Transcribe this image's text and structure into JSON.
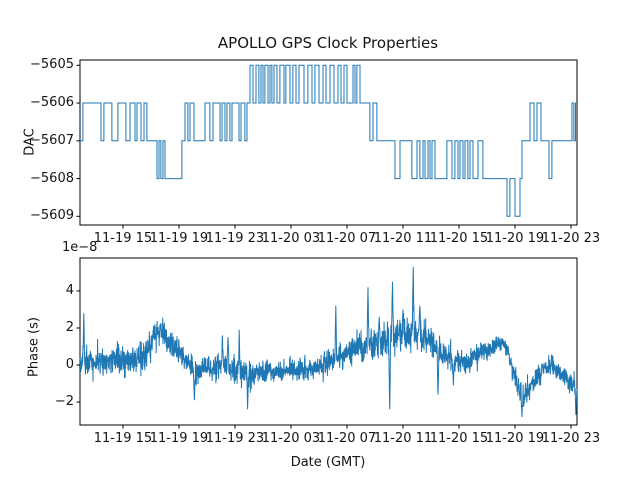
{
  "figure": {
    "background": "#ffffff",
    "line_color": "#1f77b4",
    "axis_color": "#000000"
  },
  "chart_data": [
    {
      "type": "line",
      "name": "dac-subplot",
      "title": "APOLLO GPS Clock Properties",
      "ylabel": "DAC",
      "drawstyle": "steps-post",
      "x_axis": "hours since 11-19 00:00 GMT",
      "xlim": [
        11.93,
        47.43
      ],
      "ylim": [
        -5609.23,
        -5604.86
      ],
      "grid": false,
      "xticks": [
        15,
        19,
        23,
        27,
        31,
        35,
        39,
        43,
        47
      ],
      "xtick_labels": [
        "11-19 15",
        "11-19 19",
        "11-19 23",
        "11-20 03",
        "11-20 07",
        "11-20 11",
        "11-20 15",
        "11-20 19",
        "11-20 23"
      ],
      "yticks": [
        -5605,
        -5606,
        -5607,
        -5608,
        -5609
      ],
      "ytick_labels": [
        "−5605",
        "−5606",
        "−5607",
        "−5608",
        "−5609"
      ],
      "points": [
        [
          11.93,
          -5607
        ],
        [
          12.14,
          -5606
        ],
        [
          13.43,
          -5607
        ],
        [
          13.64,
          -5606
        ],
        [
          14.21,
          -5607
        ],
        [
          14.64,
          -5606
        ],
        [
          15.21,
          -5607
        ],
        [
          15.5,
          -5606
        ],
        [
          15.86,
          -5607
        ],
        [
          16.0,
          -5606
        ],
        [
          16.29,
          -5607
        ],
        [
          16.5,
          -5606
        ],
        [
          16.71,
          -5607
        ],
        [
          17.43,
          -5608
        ],
        [
          17.57,
          -5607
        ],
        [
          17.71,
          -5608
        ],
        [
          17.86,
          -5607
        ],
        [
          18.0,
          -5608
        ],
        [
          19.21,
          -5607
        ],
        [
          19.43,
          -5606
        ],
        [
          19.64,
          -5607
        ],
        [
          19.79,
          -5606
        ],
        [
          20.07,
          -5607
        ],
        [
          20.86,
          -5606
        ],
        [
          21.21,
          -5607
        ],
        [
          21.43,
          -5606
        ],
        [
          21.93,
          -5607
        ],
        [
          22.07,
          -5606
        ],
        [
          22.29,
          -5607
        ],
        [
          22.43,
          -5606
        ],
        [
          22.64,
          -5607
        ],
        [
          22.79,
          -5606
        ],
        [
          23.29,
          -5607
        ],
        [
          23.43,
          -5606
        ],
        [
          23.71,
          -5607
        ],
        [
          23.86,
          -5606
        ],
        [
          24.07,
          -5605
        ],
        [
          24.29,
          -5606
        ],
        [
          24.5,
          -5605
        ],
        [
          24.71,
          -5606
        ],
        [
          24.86,
          -5605
        ],
        [
          25.0,
          -5606
        ],
        [
          25.14,
          -5605
        ],
        [
          25.36,
          -5606
        ],
        [
          25.5,
          -5605
        ],
        [
          25.64,
          -5606
        ],
        [
          25.79,
          -5605
        ],
        [
          26.0,
          -5606
        ],
        [
          26.21,
          -5605
        ],
        [
          26.5,
          -5606
        ],
        [
          26.64,
          -5605
        ],
        [
          26.93,
          -5606
        ],
        [
          27.14,
          -5605
        ],
        [
          27.36,
          -5606
        ],
        [
          27.57,
          -5605
        ],
        [
          27.93,
          -5606
        ],
        [
          28.21,
          -5605
        ],
        [
          28.5,
          -5606
        ],
        [
          28.71,
          -5605
        ],
        [
          29.0,
          -5606
        ],
        [
          29.29,
          -5605
        ],
        [
          29.5,
          -5606
        ],
        [
          29.79,
          -5605
        ],
        [
          30.07,
          -5606
        ],
        [
          30.36,
          -5605
        ],
        [
          30.57,
          -5606
        ],
        [
          30.79,
          -5605
        ],
        [
          31.0,
          -5606
        ],
        [
          31.43,
          -5605
        ],
        [
          31.57,
          -5606
        ],
        [
          31.71,
          -5605
        ],
        [
          31.93,
          -5606
        ],
        [
          32.64,
          -5607
        ],
        [
          32.86,
          -5606
        ],
        [
          33.14,
          -5607
        ],
        [
          34.43,
          -5608
        ],
        [
          34.79,
          -5607
        ],
        [
          35.64,
          -5608
        ],
        [
          36.0,
          -5607
        ],
        [
          36.21,
          -5608
        ],
        [
          36.43,
          -5607
        ],
        [
          36.57,
          -5608
        ],
        [
          36.79,
          -5607
        ],
        [
          36.93,
          -5608
        ],
        [
          37.07,
          -5607
        ],
        [
          37.29,
          -5608
        ],
        [
          38.14,
          -5607
        ],
        [
          38.5,
          -5608
        ],
        [
          38.71,
          -5607
        ],
        [
          38.93,
          -5608
        ],
        [
          39.07,
          -5607
        ],
        [
          39.29,
          -5608
        ],
        [
          39.43,
          -5607
        ],
        [
          39.64,
          -5608
        ],
        [
          39.79,
          -5607
        ],
        [
          40.0,
          -5608
        ],
        [
          40.36,
          -5607
        ],
        [
          40.71,
          -5608
        ],
        [
          42.43,
          -5609
        ],
        [
          42.64,
          -5608
        ],
        [
          43.0,
          -5609
        ],
        [
          43.36,
          -5608
        ],
        [
          43.5,
          -5607
        ],
        [
          44.07,
          -5606
        ],
        [
          44.36,
          -5607
        ],
        [
          44.57,
          -5606
        ],
        [
          44.86,
          -5607
        ],
        [
          45.43,
          -5608
        ],
        [
          45.64,
          -5607
        ],
        [
          47.07,
          -5606
        ],
        [
          47.21,
          -5607
        ],
        [
          47.32,
          -5606
        ]
      ]
    },
    {
      "type": "line",
      "name": "phase-subplot",
      "ylabel": "Phase (s)",
      "offset_text": "1e−8",
      "unit_scale": "1e-8 s",
      "xlabel": "Date (GMT)",
      "x_axis": "hours since 11-19 00:00 GMT",
      "xlim": [
        11.93,
        47.43
      ],
      "ylim": [
        -3.24,
        5.78
      ],
      "grid": false,
      "xticks": [
        15,
        19,
        23,
        27,
        31,
        35,
        39,
        43,
        47
      ],
      "xtick_labels": [
        "11-19 15",
        "11-19 19",
        "11-19 23",
        "11-20 03",
        "11-20 07",
        "11-20 11",
        "11-20 15",
        "11-20 19",
        "11-20 23"
      ],
      "yticks": [
        4,
        2,
        0,
        -2
      ],
      "ytick_labels": [
        "4",
        "2",
        "0",
        "−2"
      ],
      "note": "noisy phase series (units 1e-8 s) reconstructed as trend + white noise + spikes",
      "sample_step_hours": 0.015,
      "trend": [
        [
          11.93,
          0.2
        ],
        [
          13.0,
          0.1
        ],
        [
          14.0,
          0.2
        ],
        [
          15.0,
          0.3
        ],
        [
          16.0,
          0.3
        ],
        [
          16.6,
          0.5
        ],
        [
          17.2,
          1.5
        ],
        [
          17.7,
          2.0
        ],
        [
          18.2,
          1.3
        ],
        [
          18.8,
          0.8
        ],
        [
          19.5,
          0.3
        ],
        [
          20.2,
          -0.4
        ],
        [
          20.8,
          -0.2
        ],
        [
          21.5,
          -0.1
        ],
        [
          22.2,
          0.0
        ],
        [
          22.8,
          -0.3
        ],
        [
          23.5,
          -0.4
        ],
        [
          24.1,
          -0.6
        ],
        [
          24.8,
          -0.4
        ],
        [
          25.5,
          -0.3
        ],
        [
          26.2,
          -0.35
        ],
        [
          27.0,
          -0.2
        ],
        [
          27.8,
          -0.3
        ],
        [
          28.5,
          -0.1
        ],
        [
          29.2,
          0.0
        ],
        [
          29.9,
          0.25
        ],
        [
          30.6,
          0.5
        ],
        [
          31.3,
          0.8
        ],
        [
          32.0,
          1.0
        ],
        [
          32.7,
          1.2
        ],
        [
          33.4,
          1.2
        ],
        [
          34.1,
          1.4
        ],
        [
          34.8,
          1.5
        ],
        [
          35.5,
          1.7
        ],
        [
          36.0,
          1.8
        ],
        [
          36.5,
          1.5
        ],
        [
          37.0,
          1.2
        ],
        [
          37.5,
          0.8
        ],
        [
          38.0,
          0.5
        ],
        [
          38.5,
          0.3
        ],
        [
          39.0,
          0.1
        ],
        [
          39.6,
          0.2
        ],
        [
          40.2,
          0.4
        ],
        [
          40.8,
          0.8
        ],
        [
          41.4,
          1.0
        ],
        [
          42.0,
          1.2
        ],
        [
          42.5,
          0.8
        ],
        [
          42.9,
          -0.3
        ],
        [
          43.3,
          -1.5
        ],
        [
          43.7,
          -1.8
        ],
        [
          44.1,
          -1.2
        ],
        [
          44.6,
          -0.6
        ],
        [
          45.1,
          -0.2
        ],
        [
          45.6,
          0.1
        ],
        [
          46.0,
          -0.3
        ],
        [
          46.5,
          -0.7
        ],
        [
          47.0,
          -1.0
        ],
        [
          47.43,
          -1.3
        ]
      ],
      "noise_amplitude": [
        [
          11.93,
          0.5
        ],
        [
          17.0,
          0.55
        ],
        [
          20.0,
          0.45
        ],
        [
          23.0,
          0.6
        ],
        [
          26.0,
          0.35
        ],
        [
          29.0,
          0.4
        ],
        [
          31.0,
          0.55
        ],
        [
          33.0,
          0.6
        ],
        [
          35.0,
          0.7
        ],
        [
          36.5,
          0.6
        ],
        [
          38.0,
          0.5
        ],
        [
          40.0,
          0.4
        ],
        [
          42.0,
          0.35
        ],
        [
          43.5,
          0.5
        ],
        [
          45.0,
          0.35
        ],
        [
          47.43,
          0.45
        ]
      ],
      "spikes": [
        [
          12.2,
          2.8
        ],
        [
          20.1,
          -1.9
        ],
        [
          22.1,
          1.6
        ],
        [
          22.5,
          1.5
        ],
        [
          23.3,
          1.9
        ],
        [
          23.9,
          -2.4
        ],
        [
          30.2,
          3.2
        ],
        [
          32.5,
          4.2
        ],
        [
          33.3,
          2.6
        ],
        [
          34.05,
          -2.4
        ],
        [
          34.25,
          4.5
        ],
        [
          35.0,
          3.0
        ],
        [
          35.73,
          5.3
        ],
        [
          36.2,
          3.2
        ],
        [
          37.5,
          -1.6
        ],
        [
          38.6,
          -1.1
        ],
        [
          43.5,
          -2.8
        ],
        [
          47.35,
          -2.7
        ]
      ]
    }
  ]
}
